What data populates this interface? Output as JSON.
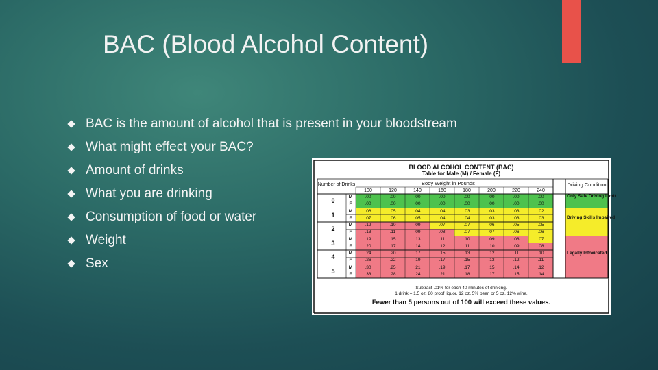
{
  "slide": {
    "title": "BAC (Blood Alcohol Content)",
    "accent_color": "#e8524a",
    "bullets": [
      "BAC is the amount of alcohol that is present in your bloodstream",
      "What might effect your BAC?",
      "Amount of drinks",
      "What you are drinking",
      "Consumption of food or water",
      "Weight",
      "Sex"
    ]
  },
  "bac_table": {
    "title": "BLOOD ALCOHOL CONTENT (BAC)",
    "subtitle": "Table for Male (M) / Female (F)",
    "drinks_header": "Number of Drinks",
    "weight_header": "Body Weight in Pounds",
    "condition_header": "Driving Condition",
    "weights": [
      "100",
      "120",
      "140",
      "160",
      "180",
      "200",
      "220",
      "240"
    ],
    "drinks": [
      "0",
      "1",
      "2",
      "3",
      "4",
      "5"
    ],
    "rows": [
      {
        "sex": "M",
        "values": [
          ".00",
          ".00",
          ".00",
          ".00",
          ".00",
          ".00",
          ".00",
          ".00"
        ]
      },
      {
        "sex": "F",
        "values": [
          ".00",
          ".00",
          ".00",
          ".00",
          ".00",
          ".00",
          ".00",
          ".00"
        ]
      },
      {
        "sex": "M",
        "values": [
          ".06",
          ".05",
          ".04",
          ".04",
          ".03",
          ".03",
          ".03",
          ".02"
        ]
      },
      {
        "sex": "F",
        "values": [
          ".07",
          ".06",
          ".05",
          ".04",
          ".04",
          ".03",
          ".03",
          ".03"
        ]
      },
      {
        "sex": "M",
        "values": [
          ".12",
          ".10",
          ".09",
          ".07",
          ".07",
          ".06",
          ".05",
          ".05"
        ]
      },
      {
        "sex": "F",
        "values": [
          ".13",
          ".11",
          ".09",
          ".08",
          ".07",
          ".07",
          ".06",
          ".06"
        ]
      },
      {
        "sex": "M",
        "values": [
          ".19",
          ".15",
          ".13",
          ".11",
          ".10",
          ".09",
          ".08",
          ".07"
        ]
      },
      {
        "sex": "F",
        "values": [
          ".20",
          ".17",
          ".14",
          ".12",
          ".11",
          ".10",
          ".09",
          ".08"
        ]
      },
      {
        "sex": "M",
        "values": [
          ".24",
          ".20",
          ".17",
          ".15",
          ".13",
          ".12",
          ".11",
          ".10"
        ]
      },
      {
        "sex": "F",
        "values": [
          ".26",
          ".22",
          ".19",
          ".17",
          ".15",
          ".13",
          ".12",
          ".11"
        ]
      },
      {
        "sex": "M",
        "values": [
          ".30",
          ".25",
          ".21",
          ".19",
          ".17",
          ".15",
          ".14",
          ".12"
        ]
      },
      {
        "sex": "F",
        "values": [
          ".33",
          ".28",
          ".24",
          ".21",
          ".18",
          ".17",
          ".15",
          ".14"
        ]
      }
    ],
    "conditions": [
      "Only Safe Driving Limit",
      "Driving Skills Impaired",
      "Legally Intoxicated"
    ],
    "footnote_1": "Subtract .01% for each 40 minutes of drinking.",
    "footnote_2": "1 drink = 1.5 oz. 80 proof liquor, 12 oz. 5% beer, or 5 oz. 12% wine.",
    "footnote_3": "Fewer than 5 persons out of 100 will exceed these values.",
    "colors": {
      "safe": "#4ec24e",
      "impaired": "#f5ec2a",
      "intoxicated": "#f07a86"
    }
  }
}
